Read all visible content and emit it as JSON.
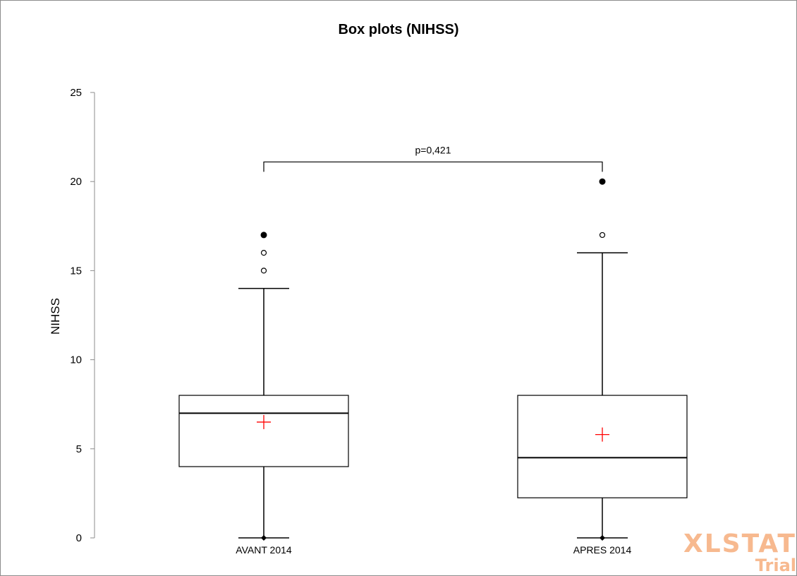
{
  "chart_data": {
    "type": "box",
    "title": "Box plots (NIHSS)",
    "ylabel": "NIHSS",
    "ylim": [
      0,
      25
    ],
    "yticks": [
      0,
      5,
      10,
      15,
      20,
      25
    ],
    "grid": false,
    "categories": [
      "AVANT 2014",
      "APRES 2014"
    ],
    "boxes": [
      {
        "category": "AVANT 2014",
        "min": 0,
        "q1": 4,
        "median": 7,
        "q3": 8,
        "upper_whisker": 14,
        "mean": 6.5,
        "outliers_open": [
          15,
          16
        ],
        "outliers_filled": [
          17
        ]
      },
      {
        "category": "APRES 2014",
        "min": 0,
        "q1": 2.25,
        "median": 4.5,
        "q3": 8,
        "upper_whisker": 16,
        "mean": 5.8,
        "outliers_open": [
          17
        ],
        "outliers_filled": [
          20
        ]
      }
    ],
    "annotation": {
      "text": "p=0,421",
      "y": 21.1
    },
    "colors": {
      "mean_marker": "#ff0000",
      "box": "#000000"
    }
  },
  "watermark": {
    "line1": "XLSTAT",
    "line2": "Trial",
    "color": "#f7b98f"
  }
}
